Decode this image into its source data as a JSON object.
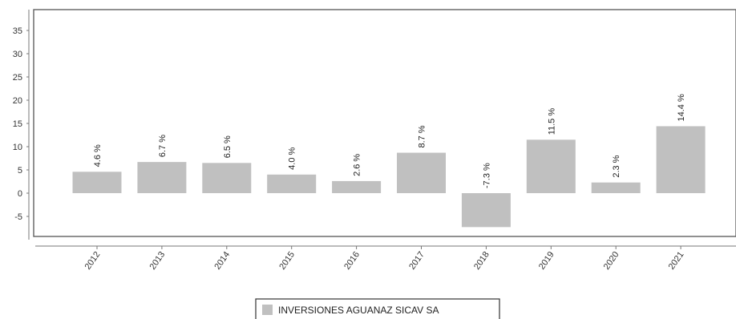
{
  "chart_data": {
    "type": "bar",
    "title": "",
    "xlabel": "",
    "ylabel": "",
    "categories": [
      "2012",
      "2013",
      "2014",
      "2015",
      "2016",
      "2017",
      "2018",
      "2019",
      "2020",
      "2021"
    ],
    "series": [
      {
        "name": "INVERSIONES AGUANAZ SICAV SA",
        "values": [
          4.6,
          6.7,
          6.5,
          4.0,
          2.6,
          8.7,
          -7.3,
          11.5,
          2.3,
          14.4
        ],
        "labels": [
          "4.6 %",
          "6.7 %",
          "6.5 %",
          "4.0 %",
          "2.6 %",
          "8.7 %",
          "-7.3 %",
          "11.5 %",
          "2.3 %",
          "14.4 %"
        ],
        "color": "#c0c0c0"
      }
    ],
    "yticks": [
      -5,
      0,
      5,
      10,
      15,
      20,
      25,
      30,
      35
    ],
    "ylim": [
      -10,
      40
    ],
    "grid": false,
    "legend": "bottom-center"
  }
}
